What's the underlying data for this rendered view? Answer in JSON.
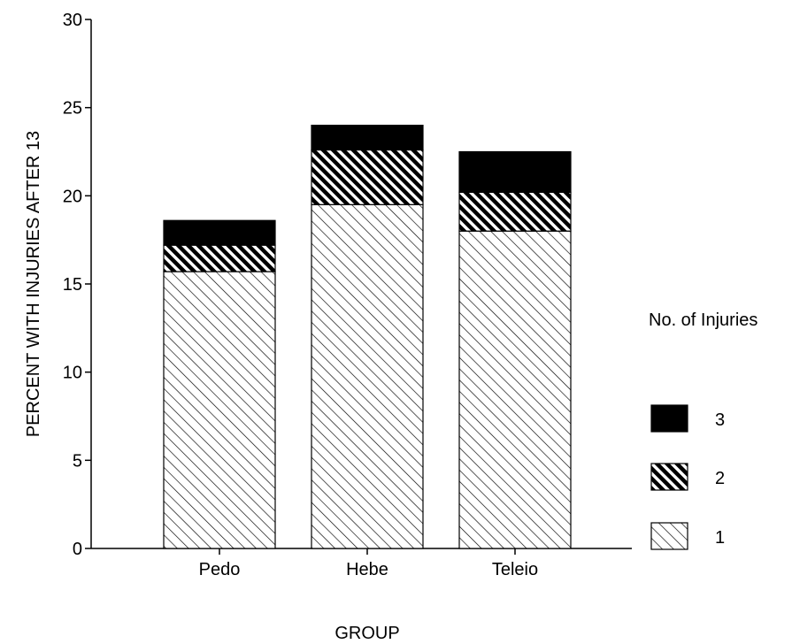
{
  "chart_data": {
    "type": "bar",
    "stacked": true,
    "title": "",
    "xlabel": "GROUP",
    "ylabel": "PERCENT WITH INJURIES AFTER 13",
    "ylim": [
      0,
      30
    ],
    "yticks": [
      0,
      5,
      10,
      15,
      20,
      25,
      30
    ],
    "categories": [
      "Pedo",
      "Hebe",
      "Teleio"
    ],
    "series": [
      {
        "name": "1",
        "values": [
          15.7,
          19.5,
          18.0
        ],
        "fill": "light-hatch"
      },
      {
        "name": "2",
        "values": [
          1.5,
          3.1,
          2.2
        ],
        "fill": "dark-hatch"
      },
      {
        "name": "3",
        "values": [
          1.4,
          1.4,
          2.3
        ],
        "fill": "solid-black"
      }
    ],
    "legend": {
      "title": "No. of Injuries",
      "placement": "right",
      "order": [
        "3",
        "2",
        "1"
      ]
    },
    "grid": false
  }
}
